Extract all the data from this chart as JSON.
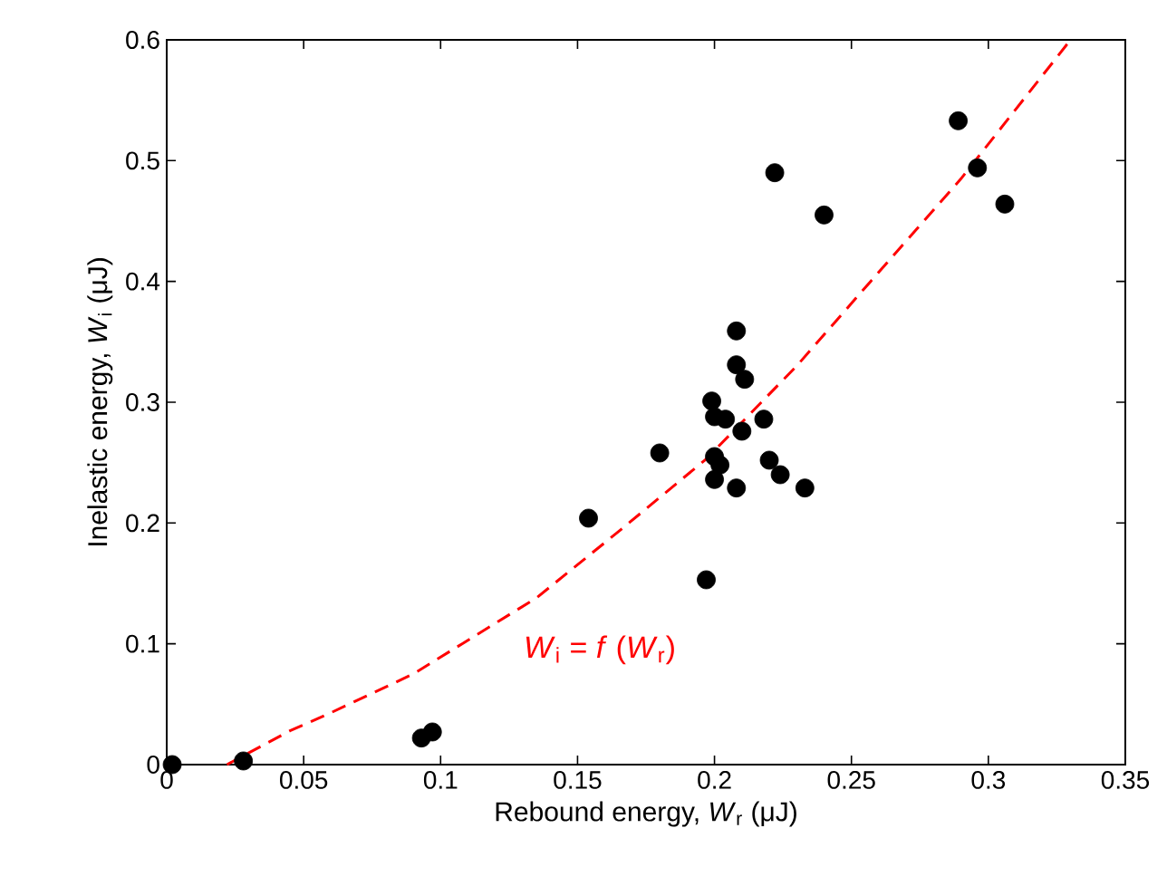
{
  "chart_data": {
    "type": "scatter",
    "xlabel": "Rebound energy,  *W*$_{r}$ (μJ)",
    "ylabel": "Inelastic energy,  *W*$_{i}$ (μJ)",
    "annotations": [
      "*W*$_{i}$ = *f* (*W*$_{r}$)"
    ],
    "series": [
      {
        "color": "#000000",
        "marker": "circle",
        "x": [
          0.002,
          0.028,
          0.093,
          0.097,
          0.154,
          0.18,
          0.197,
          0.208,
          0.208,
          0.211,
          0.199,
          0.2,
          0.204,
          0.21,
          0.218,
          0.2,
          0.202,
          0.2,
          0.208,
          0.22,
          0.224,
          0.233,
          0.222,
          0.24,
          0.289,
          0.296,
          0.306
        ],
        "values": [
          0,
          0.003,
          0.022,
          0.027,
          0.204,
          0.258,
          0.153,
          0.359,
          0.331,
          0.319,
          0.301,
          0.288,
          0.286,
          0.276,
          0.286,
          0.255,
          0.248,
          0.236,
          0.229,
          0.252,
          0.24,
          0.229,
          0.49,
          0.455,
          0.533,
          0.494,
          0.464
        ]
      },
      {
        "type": "line",
        "color": "#ff0000",
        "line_style": "dashed",
        "marker": "none",
        "x": [
          0.022,
          0.045,
          0.06,
          0.09,
          0.135,
          0.165,
          0.197,
          0.23,
          0.257,
          0.29,
          0.33
        ],
        "values": [
          0,
          0.028,
          0.043,
          0.075,
          0.138,
          0.193,
          0.253,
          0.33,
          0.4,
          0.485,
          0.6
        ]
      }
    ],
    "xlim": [
      0,
      0.35
    ],
    "ylim": [
      0,
      0.6
    ],
    "xticks": [
      0,
      0.05,
      0.1,
      0.15,
      0.2,
      0.25,
      0.3,
      0.35
    ],
    "yticks": [
      0,
      0.1,
      0.2,
      0.3,
      0.4,
      0.5,
      0.6
    ],
    "grid": false
  }
}
